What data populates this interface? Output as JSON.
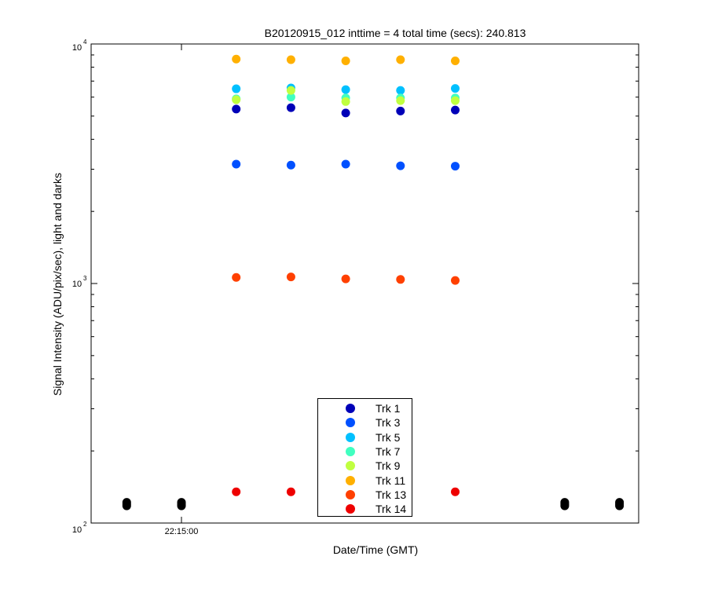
{
  "chart_data": {
    "type": "scatter",
    "title": "B20120915_012 inttime = 4 total time (secs): 240.813",
    "xlabel": "Date/Time (GMT)",
    "ylabel": "Signal Intensity (ADU/pix/sec), light and darks",
    "yscale": "log",
    "ylim": [
      100,
      10000
    ],
    "y_ticks": [
      {
        "value": 100,
        "base": "10",
        "exp": "2"
      },
      {
        "value": 1000,
        "base": "10",
        "exp": "3"
      },
      {
        "value": 10000,
        "base": "10",
        "exp": "4"
      }
    ],
    "x_tick_labels": [
      {
        "x": 2,
        "label": "22:15:00"
      }
    ],
    "xlim": [
      0.35,
      10.35
    ],
    "legend_position": "bottom-center",
    "series": [
      {
        "name": "Trk 1",
        "color": "#0000b8",
        "x": [
          3,
          4,
          5,
          6,
          7
        ],
        "y": [
          5350,
          5420,
          5150,
          5250,
          5300
        ]
      },
      {
        "name": "Trk 3",
        "color": "#0050ff",
        "x": [
          3,
          4,
          5,
          6,
          7
        ],
        "y": [
          3150,
          3120,
          3150,
          3100,
          3090
        ]
      },
      {
        "name": "Trk 5",
        "color": "#00c0ff",
        "x": [
          3,
          4,
          5,
          6,
          7
        ],
        "y": [
          6500,
          6550,
          6450,
          6400,
          6520
        ]
      },
      {
        "name": "Trk 7",
        "color": "#40ffc0",
        "x": [
          3,
          4,
          5,
          6,
          7
        ],
        "y": [
          5900,
          6000,
          5950,
          5950,
          5950
        ]
      },
      {
        "name": "Trk 9",
        "color": "#c0ff40",
        "x": [
          3,
          4,
          5,
          6,
          7
        ],
        "y": [
          5850,
          6400,
          5750,
          5800,
          5800
        ]
      },
      {
        "name": "Trk 11",
        "color": "#ffb000",
        "x": [
          3,
          4,
          5,
          6,
          7
        ],
        "y": [
          8650,
          8600,
          8500,
          8600,
          8500
        ]
      },
      {
        "name": "Trk 13",
        "color": "#ff4000",
        "x": [
          3,
          4,
          5,
          6,
          7
        ],
        "y": [
          1060,
          1065,
          1045,
          1040,
          1030
        ]
      },
      {
        "name": "Trk 14",
        "color": "#ee0000",
        "x": [
          3,
          4,
          7
        ],
        "y": [
          135,
          135,
          135
        ]
      }
    ],
    "darks": {
      "name": "darks",
      "color": "#000000",
      "x": [
        1,
        1,
        1,
        2,
        2,
        2,
        9,
        9,
        9,
        10,
        10,
        10
      ],
      "y": [
        118,
        120,
        122,
        118,
        120,
        122,
        118,
        120,
        122,
        118,
        120,
        122
      ]
    }
  }
}
